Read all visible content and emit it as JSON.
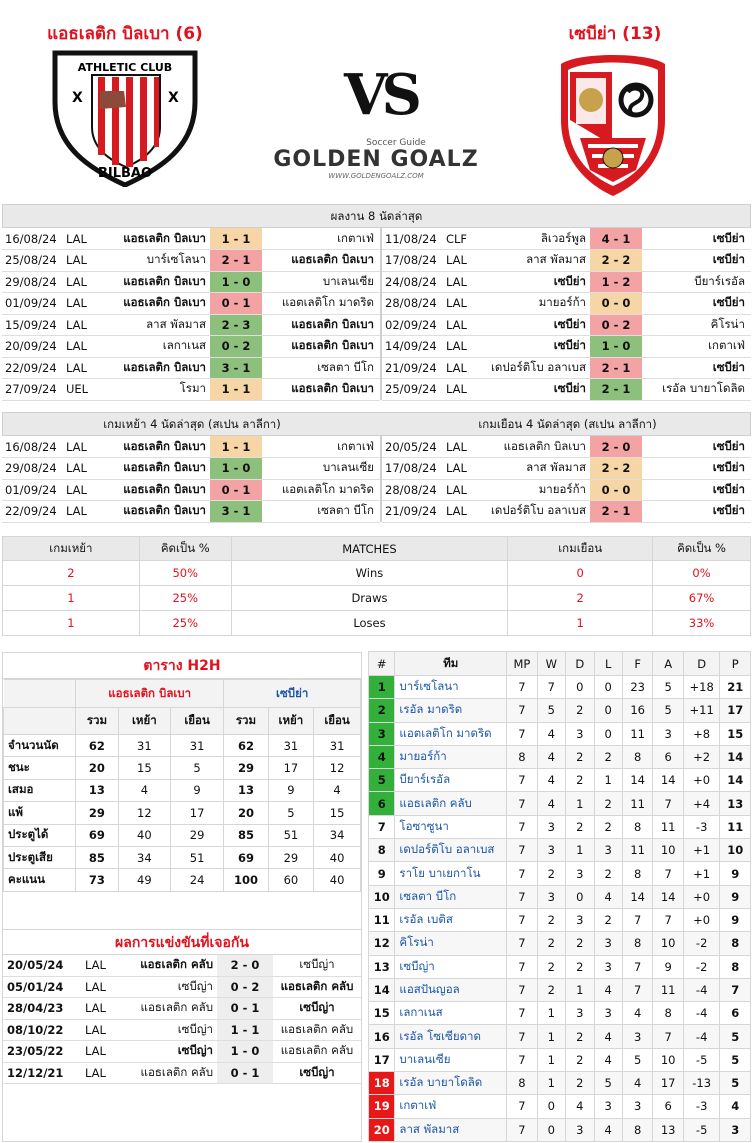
{
  "header": {
    "home_title": "แอธเลติก บิลเบา (6)",
    "away_title": "เซบีย่า (13)",
    "vs": "VS",
    "brand_top": "Soccer Guide",
    "brand": "GOLDEN GOALZ",
    "brand_url": "WWW.GOLDENGOALZ.COM",
    "home_logo_text": "ATHLETIC CLUB",
    "home_logo_sub": "BILBAO"
  },
  "recent": {
    "title": "ผลงาน 8 นัดล่าสุด",
    "left": [
      {
        "date": "16/08/24",
        "comp": "LAL",
        "home": "แอธเลติก บิลเบา",
        "score": "1 - 1",
        "away": "เกตาเฟ่",
        "res": "d",
        "hb": true,
        "ab": false
      },
      {
        "date": "25/08/24",
        "comp": "LAL",
        "home": "บาร์เซโลนา",
        "score": "2 - 1",
        "away": "แอธเลติก บิลเบา",
        "res": "l",
        "hb": false,
        "ab": true
      },
      {
        "date": "29/08/24",
        "comp": "LAL",
        "home": "แอธเลติก บิลเบา",
        "score": "1 - 0",
        "away": "บาเลนเซีย",
        "res": "w",
        "hb": true,
        "ab": false
      },
      {
        "date": "01/09/24",
        "comp": "LAL",
        "home": "แอธเลติก บิลเบา",
        "score": "0 - 1",
        "away": "แอตเลติโก มาดริด",
        "res": "l",
        "hb": true,
        "ab": false
      },
      {
        "date": "15/09/24",
        "comp": "LAL",
        "home": "ลาส พัลมาส",
        "score": "2 - 3",
        "away": "แอธเลติก บิลเบา",
        "res": "w",
        "hb": false,
        "ab": true
      },
      {
        "date": "20/09/24",
        "comp": "LAL",
        "home": "เลกาเนส",
        "score": "0 - 2",
        "away": "แอธเลติก บิลเบา",
        "res": "w",
        "hb": false,
        "ab": true
      },
      {
        "date": "22/09/24",
        "comp": "LAL",
        "home": "แอธเลติก บิลเบา",
        "score": "3 - 1",
        "away": "เซลตา บีโก",
        "res": "w",
        "hb": true,
        "ab": false
      },
      {
        "date": "27/09/24",
        "comp": "UEL",
        "home": "โรมา",
        "score": "1 - 1",
        "away": "แอธเลติก บิลเบา",
        "res": "d",
        "hb": false,
        "ab": true
      }
    ],
    "right": [
      {
        "date": "11/08/24",
        "comp": "CLF",
        "home": "ลิเวอร์พูล",
        "score": "4 - 1",
        "away": "เซบีย่า",
        "res": "l",
        "hb": false,
        "ab": true
      },
      {
        "date": "17/08/24",
        "comp": "LAL",
        "home": "ลาส พัลมาส",
        "score": "2 - 2",
        "away": "เซบีย่า",
        "res": "d",
        "hb": false,
        "ab": true
      },
      {
        "date": "24/08/24",
        "comp": "LAL",
        "home": "เซบีย่า",
        "score": "1 - 2",
        "away": "บียาร์เรอัล",
        "res": "l",
        "hb": true,
        "ab": false
      },
      {
        "date": "28/08/24",
        "comp": "LAL",
        "home": "มายอร์ก้า",
        "score": "0 - 0",
        "away": "เซบีย่า",
        "res": "d",
        "hb": false,
        "ab": true
      },
      {
        "date": "02/09/24",
        "comp": "LAL",
        "home": "เซบีย่า",
        "score": "0 - 2",
        "away": "คิโรน่า",
        "res": "l",
        "hb": true,
        "ab": false
      },
      {
        "date": "14/09/24",
        "comp": "LAL",
        "home": "เซบีย่า",
        "score": "1 - 0",
        "away": "เกตาเฟ่",
        "res": "w",
        "hb": true,
        "ab": false
      },
      {
        "date": "21/09/24",
        "comp": "LAL",
        "home": "เดปอร์ติโบ อลาเบส",
        "score": "2 - 1",
        "away": "เซบีย่า",
        "res": "l",
        "hb": false,
        "ab": true
      },
      {
        "date": "25/09/24",
        "comp": "LAL",
        "home": "เซบีย่า",
        "score": "2 - 1",
        "away": "เรอัล บายาโดลิด",
        "res": "w",
        "hb": true,
        "ab": false
      }
    ]
  },
  "last4": {
    "left_title": "เกมเหย้า 4 นัดล่าสุด (สเปน ลาลีกา)",
    "right_title": "เกมเยือน 4 นัดล่าสุด (สเปน ลาลีกา)",
    "left": [
      {
        "date": "16/08/24",
        "comp": "LAL",
        "home": "แอธเลติก บิลเบา",
        "score": "1 - 1",
        "away": "เกตาเฟ่",
        "res": "d",
        "hb": true,
        "ab": false
      },
      {
        "date": "29/08/24",
        "comp": "LAL",
        "home": "แอธเลติก บิลเบา",
        "score": "1 - 0",
        "away": "บาเลนเซีย",
        "res": "w",
        "hb": true,
        "ab": false
      },
      {
        "date": "01/09/24",
        "comp": "LAL",
        "home": "แอธเลติก บิลเบา",
        "score": "0 - 1",
        "away": "แอตเลติโก มาดริด",
        "res": "l",
        "hb": true,
        "ab": false
      },
      {
        "date": "22/09/24",
        "comp": "LAL",
        "home": "แอธเลติก บิลเบา",
        "score": "3 - 1",
        "away": "เซลตา บีโก",
        "res": "w",
        "hb": true,
        "ab": false
      }
    ],
    "right": [
      {
        "date": "20/05/24",
        "comp": "LAL",
        "home": "แอธเลติก บิลเบา",
        "score": "2 - 0",
        "away": "เซบีย่า",
        "res": "l",
        "hb": false,
        "ab": true
      },
      {
        "date": "17/08/24",
        "comp": "LAL",
        "home": "ลาส พัลมาส",
        "score": "2 - 2",
        "away": "เซบีย่า",
        "res": "d",
        "hb": false,
        "ab": true
      },
      {
        "date": "28/08/24",
        "comp": "LAL",
        "home": "มายอร์ก้า",
        "score": "0 - 0",
        "away": "เซบีย่า",
        "res": "d",
        "hb": false,
        "ab": true
      },
      {
        "date": "21/09/24",
        "comp": "LAL",
        "home": "เดปอร์ติโบ อลาเบส",
        "score": "2 - 1",
        "away": "เซบีย่า",
        "res": "l",
        "hb": false,
        "ab": true
      }
    ]
  },
  "summary": {
    "headers": [
      "เกมเหย้า",
      "คิดเป็น %",
      "MATCHES",
      "เกมเยือน",
      "คิดเป็น %"
    ],
    "rows": [
      {
        "home": "2",
        "hp": "50%",
        "label": "Wins",
        "away": "0",
        "ap": "0%"
      },
      {
        "home": "1",
        "hp": "25%",
        "label": "Draws",
        "away": "2",
        "ap": "67%"
      },
      {
        "home": "1",
        "hp": "25%",
        "label": "Loses",
        "away": "1",
        "ap": "33%"
      }
    ]
  },
  "h2h": {
    "title": "ตาราง H2H",
    "home_team": "แอธเลติก บิลเบา",
    "away_team": "เซบีย่า",
    "subheads": [
      "รวม",
      "เหย้า",
      "เยือน",
      "รวม",
      "เหย้า",
      "เยือน"
    ],
    "rows": [
      {
        "label": "จำนวนนัด",
        "v": [
          "62",
          "31",
          "31",
          "62",
          "31",
          "31"
        ]
      },
      {
        "label": "ชนะ",
        "v": [
          "20",
          "15",
          "5",
          "29",
          "17",
          "12"
        ]
      },
      {
        "label": "เสมอ",
        "v": [
          "13",
          "4",
          "9",
          "13",
          "9",
          "4"
        ]
      },
      {
        "label": "แพ้",
        "v": [
          "29",
          "12",
          "17",
          "20",
          "5",
          "15"
        ]
      },
      {
        "label": "ประตูได้",
        "v": [
          "69",
          "40",
          "29",
          "85",
          "51",
          "34"
        ]
      },
      {
        "label": "ประตูเสีย",
        "v": [
          "85",
          "34",
          "51",
          "69",
          "29",
          "40"
        ]
      },
      {
        "label": "คะแนน",
        "v": [
          "73",
          "49",
          "24",
          "100",
          "60",
          "40"
        ]
      }
    ]
  },
  "meetings": {
    "title": "ผลการแข่งขันที่เจอกัน",
    "rows": [
      {
        "date": "20/05/24",
        "comp": "LAL",
        "home": "แอธเลติก คลับ",
        "score": "2 - 0",
        "away": "เซบีญ่า",
        "hb": true,
        "ab": false
      },
      {
        "date": "05/01/24",
        "comp": "LAL",
        "home": "เซบีญ่า",
        "score": "0 - 2",
        "away": "แอธเลติก คลับ",
        "hb": false,
        "ab": true
      },
      {
        "date": "28/04/23",
        "comp": "LAL",
        "home": "แอธเลติก คลับ",
        "score": "0 - 1",
        "away": "เซบีญ่า",
        "hb": false,
        "ab": true
      },
      {
        "date": "08/10/22",
        "comp": "LAL",
        "home": "เซบีญ่า",
        "score": "1 - 1",
        "away": "แอธเลติก คลับ",
        "hb": false,
        "ab": false
      },
      {
        "date": "23/05/22",
        "comp": "LAL",
        "home": "เซบีญ่า",
        "score": "1 - 0",
        "away": "แอธเลติก คลับ",
        "hb": true,
        "ab": false
      },
      {
        "date": "12/12/21",
        "comp": "LAL",
        "home": "แอธเลติก คลับ",
        "score": "0 - 1",
        "away": "เซบีญ่า",
        "hb": false,
        "ab": true
      }
    ]
  },
  "standings": {
    "headers": [
      "#",
      "ทีม",
      "MP",
      "W",
      "D",
      "L",
      "F",
      "A",
      "D",
      "P"
    ],
    "rows": [
      {
        "pos": "1",
        "team": "บาร์เซโลนา",
        "mp": "7",
        "w": "7",
        "d": "0",
        "l": "0",
        "f": "23",
        "a": "5",
        "gd": "+18",
        "p": "21",
        "zone": "green"
      },
      {
        "pos": "2",
        "team": "เรอัล มาดริด",
        "mp": "7",
        "w": "5",
        "d": "2",
        "l": "0",
        "f": "16",
        "a": "5",
        "gd": "+11",
        "p": "17",
        "zone": "green"
      },
      {
        "pos": "3",
        "team": "แอตเลติโก มาดริด",
        "mp": "7",
        "w": "4",
        "d": "3",
        "l": "0",
        "f": "11",
        "a": "3",
        "gd": "+8",
        "p": "15",
        "zone": "green"
      },
      {
        "pos": "4",
        "team": "มายอร์ก้า",
        "mp": "8",
        "w": "4",
        "d": "2",
        "l": "2",
        "f": "8",
        "a": "6",
        "gd": "+2",
        "p": "14",
        "zone": "green"
      },
      {
        "pos": "5",
        "team": "บียาร์เรอัล",
        "mp": "7",
        "w": "4",
        "d": "2",
        "l": "1",
        "f": "14",
        "a": "14",
        "gd": "+0",
        "p": "14",
        "zone": "green"
      },
      {
        "pos": "6",
        "team": "แอธเลติก คลับ",
        "mp": "7",
        "w": "4",
        "d": "1",
        "l": "2",
        "f": "11",
        "a": "7",
        "gd": "+4",
        "p": "13",
        "zone": "green"
      },
      {
        "pos": "7",
        "team": "โอซาซูนา",
        "mp": "7",
        "w": "3",
        "d": "2",
        "l": "2",
        "f": "8",
        "a": "11",
        "gd": "-3",
        "p": "11",
        "zone": ""
      },
      {
        "pos": "8",
        "team": "เดปอร์ติโบ อลาเบส",
        "mp": "7",
        "w": "3",
        "d": "1",
        "l": "3",
        "f": "11",
        "a": "10",
        "gd": "+1",
        "p": "10",
        "zone": ""
      },
      {
        "pos": "9",
        "team": "ราโย บาเยกาโน",
        "mp": "7",
        "w": "2",
        "d": "3",
        "l": "2",
        "f": "8",
        "a": "7",
        "gd": "+1",
        "p": "9",
        "zone": ""
      },
      {
        "pos": "10",
        "team": "เซลตา บีโก",
        "mp": "7",
        "w": "3",
        "d": "0",
        "l": "4",
        "f": "14",
        "a": "14",
        "gd": "+0",
        "p": "9",
        "zone": ""
      },
      {
        "pos": "11",
        "team": "เรอัล เบติส",
        "mp": "7",
        "w": "2",
        "d": "3",
        "l": "2",
        "f": "7",
        "a": "7",
        "gd": "+0",
        "p": "9",
        "zone": ""
      },
      {
        "pos": "12",
        "team": "คิโรน่า",
        "mp": "7",
        "w": "2",
        "d": "2",
        "l": "3",
        "f": "8",
        "a": "10",
        "gd": "-2",
        "p": "8",
        "zone": ""
      },
      {
        "pos": "13",
        "team": "เซบีญ่า",
        "mp": "7",
        "w": "2",
        "d": "2",
        "l": "3",
        "f": "7",
        "a": "9",
        "gd": "-2",
        "p": "8",
        "zone": ""
      },
      {
        "pos": "14",
        "team": "แอสปันญอล",
        "mp": "7",
        "w": "2",
        "d": "1",
        "l": "4",
        "f": "7",
        "a": "11",
        "gd": "-4",
        "p": "7",
        "zone": ""
      },
      {
        "pos": "15",
        "team": "เลกาเนส",
        "mp": "7",
        "w": "1",
        "d": "3",
        "l": "3",
        "f": "4",
        "a": "8",
        "gd": "-4",
        "p": "6",
        "zone": ""
      },
      {
        "pos": "16",
        "team": "เรอัล โซเซียดาด",
        "mp": "7",
        "w": "1",
        "d": "2",
        "l": "4",
        "f": "3",
        "a": "7",
        "gd": "-4",
        "p": "5",
        "zone": ""
      },
      {
        "pos": "17",
        "team": "บาเลนเซีย",
        "mp": "7",
        "w": "1",
        "d": "2",
        "l": "4",
        "f": "5",
        "a": "10",
        "gd": "-5",
        "p": "5",
        "zone": ""
      },
      {
        "pos": "18",
        "team": "เรอัล บายาโดลิด",
        "mp": "8",
        "w": "1",
        "d": "2",
        "l": "5",
        "f": "4",
        "a": "17",
        "gd": "-13",
        "p": "5",
        "zone": "red"
      },
      {
        "pos": "19",
        "team": "เกตาเฟ่",
        "mp": "7",
        "w": "0",
        "d": "4",
        "l": "3",
        "f": "3",
        "a": "6",
        "gd": "-3",
        "p": "4",
        "zone": "red"
      },
      {
        "pos": "20",
        "team": "ลาส พัลมาส",
        "mp": "7",
        "w": "0",
        "d": "3",
        "l": "4",
        "f": "8",
        "a": "13",
        "gd": "-5",
        "p": "3",
        "zone": "red"
      }
    ]
  },
  "colors": {
    "accent": "#e1121d",
    "link": "#1c55a8",
    "win": "#8cc07c",
    "draw": "#f6d6a6",
    "loss": "#f3a3a3",
    "zone_green": "#33b03a",
    "zone_red": "#e81818"
  }
}
